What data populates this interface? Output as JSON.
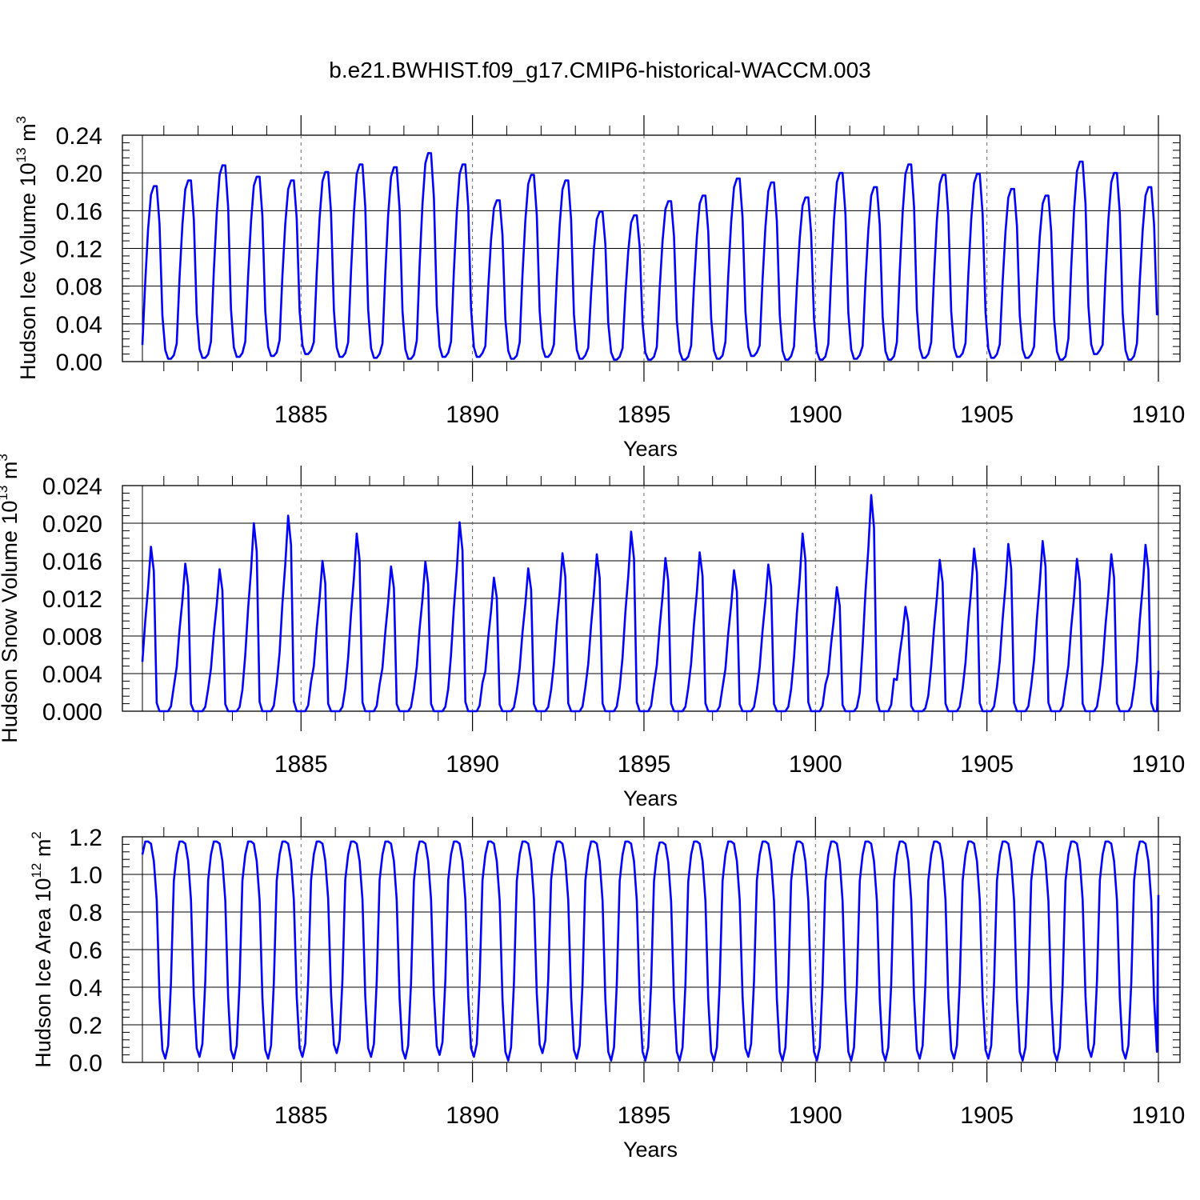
{
  "title": "b.e21.BWHIST.f09_g17.CMIP6-historical-WACCM.003",
  "line_color": "#0000ff",
  "chart_data": [
    {
      "type": "line",
      "name": "ice-volume",
      "ylabel_main": "Hudson Ice Volume 10",
      "ylabel_exp": "13",
      "ylabel_unit": " m",
      "ylabel_unit_exp": "3",
      "xlabel": "Years",
      "x_start": 1880.375,
      "xlim": [
        1880.375,
        1910.0
      ],
      "ylim": [
        0.0,
        0.24
      ],
      "x_ticks": [
        1885,
        1890,
        1895,
        1900,
        1905,
        1910
      ],
      "x_tick_labels": [
        "1885",
        "1890",
        "1895",
        "1900",
        "1905",
        "1910"
      ],
      "x_gridlines": [
        1885,
        1890,
        1895,
        1900,
        1905
      ],
      "y_ticks": [
        0.0,
        0.04,
        0.08,
        0.12,
        0.16,
        0.2,
        0.24
      ],
      "y_tick_labels": [
        "0.00",
        "0.04",
        "0.08",
        "0.12",
        "0.16",
        "0.20",
        "0.24"
      ],
      "y_minor_step": 0.008,
      "annual_peaks": [
        0.186,
        0.192,
        0.208,
        0.196,
        0.192,
        0.201,
        0.209,
        0.206,
        0.221,
        0.209,
        0.171,
        0.198,
        0.192,
        0.159,
        0.155,
        0.17,
        0.176,
        0.194,
        0.19,
        0.174,
        0.2,
        0.185,
        0.209,
        0.198,
        0.199,
        0.183,
        0.176,
        0.212,
        0.2,
        0.185
      ],
      "annual_mins": [
        0.003,
        0.004,
        0.005,
        0.006,
        0.008,
        0.005,
        0.004,
        0.003,
        0.005,
        0.005,
        0.003,
        0.005,
        0.003,
        0.002,
        0.002,
        0.002,
        0.003,
        0.006,
        0.002,
        0.002,
        0.003,
        0.002,
        0.004,
        0.005,
        0.004,
        0.004,
        0.002,
        0.008,
        0.002,
        0.005
      ],
      "monthly_shape": [
        0.08,
        0.45,
        0.75,
        0.95,
        1.0,
        1.0,
        0.78,
        0.25,
        0.05,
        0.0,
        0.0,
        0.02
      ],
      "final_value": 0.05
    },
    {
      "type": "line",
      "name": "snow-volume",
      "ylabel_main": "Hudson Snow Volume 10",
      "ylabel_exp": "13",
      "ylabel_unit": " m",
      "ylabel_unit_exp": "3",
      "xlabel": "Years",
      "x_start": 1880.375,
      "xlim": [
        1880.375,
        1910.0
      ],
      "ylim": [
        0.0,
        0.024
      ],
      "x_ticks": [
        1885,
        1890,
        1895,
        1900,
        1905,
        1910
      ],
      "x_tick_labels": [
        "1885",
        "1890",
        "1895",
        "1900",
        "1905",
        "1910"
      ],
      "x_gridlines": [
        1885,
        1890,
        1895,
        1900,
        1905
      ],
      "y_ticks": [
        0.0,
        0.004,
        0.008,
        0.012,
        0.016,
        0.02,
        0.024
      ],
      "y_tick_labels": [
        "0.000",
        "0.004",
        "0.008",
        "0.012",
        "0.016",
        "0.020",
        "0.024"
      ],
      "y_minor_step": 0.0008,
      "annual_peaks": [
        0.0175,
        0.0157,
        0.0151,
        0.02,
        0.0208,
        0.016,
        0.0189,
        0.0154,
        0.0159,
        0.0201,
        0.0142,
        0.0152,
        0.0168,
        0.0167,
        0.0191,
        0.0163,
        0.0169,
        0.015,
        0.0156,
        0.0189,
        0.0132,
        0.023,
        0.0111,
        0.0161,
        0.0173,
        0.0178,
        0.0181,
        0.0162,
        0.0167,
        0.0177
      ],
      "annual_mins": [
        0.0,
        0.0,
        0.0,
        0.0,
        0.0,
        0.0,
        0.0,
        0.0,
        0.0,
        0.0,
        0.0,
        0.0,
        0.0,
        0.0,
        0.0,
        0.0,
        0.0,
        0.0,
        0.0,
        0.0,
        0.0,
        0.0,
        0.0,
        0.0,
        0.0,
        0.0,
        0.0,
        0.0,
        0.0,
        0.0
      ],
      "monthly_shape": [
        0.3,
        0.55,
        0.75,
        1.0,
        0.85,
        0.05,
        0.0,
        0.0,
        0.0,
        0.0,
        0.03,
        0.15
      ],
      "final_value": 0.0043
    },
    {
      "type": "line",
      "name": "ice-area",
      "ylabel_main": "Hudson Ice Area 10",
      "ylabel_exp": "12",
      "ylabel_unit": " m",
      "ylabel_unit_exp": "2",
      "xlabel": "Years",
      "x_start": 1880.375,
      "xlim": [
        1880.375,
        1910.0
      ],
      "ylim": [
        0.0,
        1.2
      ],
      "x_ticks": [
        1885,
        1890,
        1895,
        1900,
        1905,
        1910
      ],
      "x_tick_labels": [
        "1885",
        "1890",
        "1895",
        "1900",
        "1905",
        "1910"
      ],
      "x_gridlines": [
        1885,
        1890,
        1895,
        1900,
        1905
      ],
      "y_ticks": [
        0.0,
        0.2,
        0.4,
        0.6,
        0.8,
        1.0,
        1.2
      ],
      "y_tick_labels": [
        "0.0",
        "0.2",
        "0.4",
        "0.6",
        "0.8",
        "1.0",
        "1.2"
      ],
      "y_minor_step": 0.04,
      "annual_peaks": [
        1.175,
        1.175,
        1.175,
        1.175,
        1.175,
        1.175,
        1.175,
        1.175,
        1.175,
        1.175,
        1.175,
        1.175,
        1.175,
        1.175,
        1.175,
        1.17,
        1.175,
        1.175,
        1.175,
        1.175,
        1.175,
        1.175,
        1.175,
        1.175,
        1.175,
        1.175,
        1.175,
        1.175,
        1.175,
        1.175
      ],
      "annual_mins": [
        0.02,
        0.03,
        0.02,
        0.02,
        0.03,
        0.05,
        0.03,
        0.02,
        0.04,
        0.03,
        0.01,
        0.05,
        0.02,
        0.01,
        0.01,
        0.01,
        0.01,
        0.03,
        0.01,
        0.01,
        0.01,
        0.01,
        0.02,
        0.02,
        0.02,
        0.01,
        0.01,
        0.03,
        0.02,
        0.01
      ],
      "monthly_shape": [
        0.94,
        1.0,
        1.0,
        0.99,
        0.91,
        0.73,
        0.28,
        0.04,
        0.0,
        0.06,
        0.35,
        0.82
      ],
      "final_value": 0.89
    }
  ]
}
